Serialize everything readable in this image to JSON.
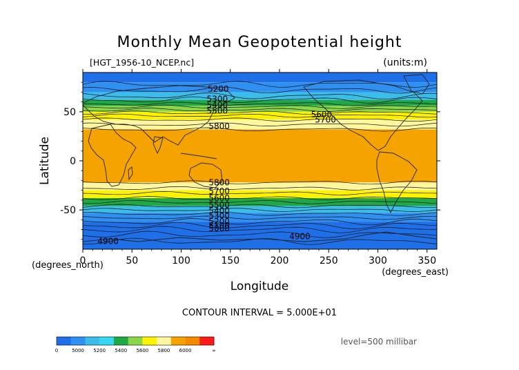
{
  "chart_data": {
    "type": "contour",
    "title": "Monthly Mean Geopotential height",
    "file_label": "[HGT_1956-10_NCEP.nc]",
    "units_label": "(units:m)",
    "xlabel": "Longitude",
    "ylabel": "Latitude",
    "x_unit_label": "(degrees_east)",
    "y_unit_label": "(degrees_north)",
    "xlim": [
      0,
      360
    ],
    "ylim": [
      -90,
      90
    ],
    "x_ticks": [
      0,
      50,
      100,
      150,
      200,
      250,
      300,
      350
    ],
    "y_ticks": [
      -50,
      0,
      50
    ],
    "contour_interval_label": "CONTOUR INTERVAL = 5.000E+01",
    "level_label": "level=500 millibar",
    "contour_labels": [
      {
        "text": "5200",
        "lon": 127,
        "lat": 73
      },
      {
        "text": "5300",
        "lon": 126,
        "lat": 63
      },
      {
        "text": "5400",
        "lon": 126,
        "lat": 57
      },
      {
        "text": "5500",
        "lon": 126,
        "lat": 51
      },
      {
        "text": "5600",
        "lon": 232,
        "lat": 47
      },
      {
        "text": "5700",
        "lon": 236,
        "lat": 42
      },
      {
        "text": "5800",
        "lon": 128,
        "lat": 35
      },
      {
        "text": "5800",
        "lon": 128,
        "lat": -22
      },
      {
        "text": "5700",
        "lon": 128,
        "lat": -31
      },
      {
        "text": "5600",
        "lon": 128,
        "lat": -38
      },
      {
        "text": "5500",
        "lon": 128,
        "lat": -45
      },
      {
        "text": "5400",
        "lon": 128,
        "lat": -51
      },
      {
        "text": "5300",
        "lon": 128,
        "lat": -56
      },
      {
        "text": "5200",
        "lon": 128,
        "lat": -62
      },
      {
        "text": "5100",
        "lon": 128,
        "lat": -66
      },
      {
        "text": "5000",
        "lon": 128,
        "lat": -69
      },
      {
        "text": "4900",
        "lon": 15,
        "lat": -82
      },
      {
        "text": "4900",
        "lon": 210,
        "lat": -77
      }
    ],
    "fill_bands": [
      {
        "lat_max": 90,
        "lat_min": 80,
        "value": "4900",
        "color": "#1e6fe8"
      },
      {
        "lat_max": 80,
        "lat_min": 70,
        "value": "5000",
        "color": "#2f90f2"
      },
      {
        "lat_max": 70,
        "lat_min": 62,
        "value": "5200",
        "color": "#3cbce8"
      },
      {
        "lat_max": 62,
        "lat_min": 56,
        "value": "5300",
        "color": "#20a848"
      },
      {
        "lat_max": 56,
        "lat_min": 50,
        "value": "5500",
        "color": "#8ad648"
      },
      {
        "lat_max": 50,
        "lat_min": 42,
        "value": "5600",
        "color": "#fff200"
      },
      {
        "lat_max": 42,
        "lat_min": 32,
        "value": "5700",
        "color": "#fff6a0"
      },
      {
        "lat_max": 32,
        "lat_min": -22,
        "value": "5800",
        "color": "#f5a300"
      },
      {
        "lat_max": -22,
        "lat_min": -30,
        "value": "5700",
        "color": "#fff6a0"
      },
      {
        "lat_max": -30,
        "lat_min": -38,
        "value": "5600",
        "color": "#fff200"
      },
      {
        "lat_max": -38,
        "lat_min": -46,
        "value": "5400",
        "color": "#20a848"
      },
      {
        "lat_max": -46,
        "lat_min": -53,
        "value": "5300",
        "color": "#3cbce8"
      },
      {
        "lat_max": -53,
        "lat_min": -62,
        "value": "5200",
        "color": "#2f90f2"
      },
      {
        "lat_max": -62,
        "lat_min": -90,
        "value": "5000",
        "color": "#1e6fe8"
      }
    ],
    "contour_lats": [
      78,
      72,
      66,
      62,
      58,
      55,
      52,
      49,
      46,
      42,
      37,
      32,
      -22,
      -28,
      -33,
      -38,
      -42,
      -46,
      -50,
      -54,
      -58,
      -62,
      -66,
      -70,
      -75,
      -82
    ],
    "colorbar": {
      "tick_labels": [
        "0",
        "5000",
        "5200",
        "5400",
        "5600",
        "5800",
        "6000",
        "∞"
      ],
      "colors": [
        "#1e6fe8",
        "#2f90f2",
        "#3cbce8",
        "#38d8ee",
        "#20a848",
        "#8ad648",
        "#fff200",
        "#fff6a0",
        "#f5a300",
        "#f58a00",
        "#ff1a1a"
      ]
    }
  }
}
